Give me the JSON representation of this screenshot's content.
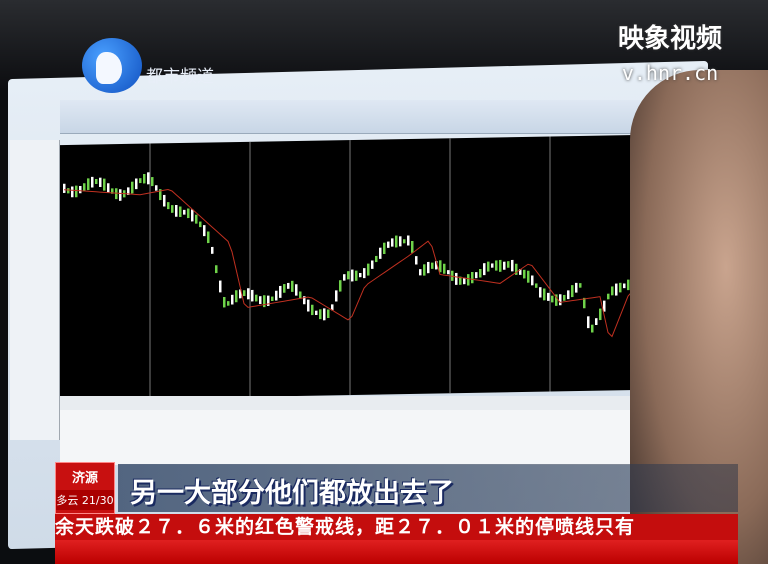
{
  "channel_logo": {
    "text": "都市频道",
    "color": "#1a6ae0"
  },
  "watermark": {
    "title": "映象视频",
    "url": "v.hnr.cn"
  },
  "location_badge": {
    "city": "济源",
    "weather": "多云 21/30",
    "color": "#c81010"
  },
  "subtitle": "另一大部分他们都放出去了",
  "ticker": "余天跌破２７．６米的红色警戒线，距２７．０１米的停喷线只有",
  "screen": {
    "content": "trading chart",
    "candle_up_color": "#6fd34a",
    "candle_down_color": "#ffffff",
    "ma_color": "#c03020"
  }
}
